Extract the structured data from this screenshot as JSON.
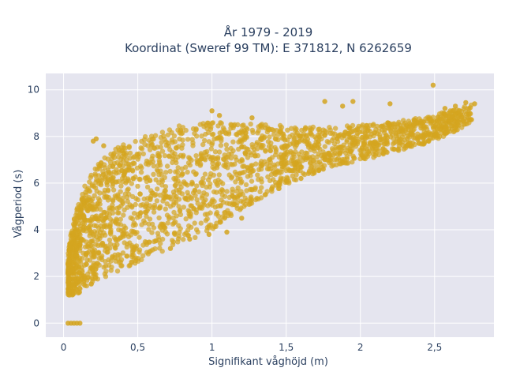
{
  "chart_data": {
    "type": "scatter",
    "title_lines": [
      "År 1979 - 2019",
      "Koordinat (Sweref 99 TM): E 371812, N 6262659"
    ],
    "xlabel": "Signifikant våghöjd (m)",
    "ylabel": "Vågperiod (s)",
    "xlim": [
      -0.12,
      2.9
    ],
    "ylim": [
      -0.6,
      10.7
    ],
    "x_ticks": [
      0,
      0.5,
      1,
      1.5,
      2,
      2.5
    ],
    "x_tick_labels": [
      "0",
      "0,5",
      "1",
      "1,5",
      "2",
      "2,5"
    ],
    "y_ticks": [
      0,
      2,
      4,
      6,
      8,
      10
    ],
    "y_tick_labels": [
      "0",
      "2",
      "4",
      "6",
      "8",
      "10"
    ],
    "grid": true,
    "background": "#e5e5ef",
    "grid_color": "#ffffff",
    "marker_color": "#d4a520",
    "marker_opacity": 0.7,
    "envelope": [
      {
        "x": 0.03,
        "y_low": 1.2,
        "y_high": 3.2
      },
      {
        "x": 0.08,
        "y_low": 1.2,
        "y_high": 4.8
      },
      {
        "x": 0.15,
        "y_low": 1.5,
        "y_high": 6.0
      },
      {
        "x": 0.25,
        "y_low": 1.9,
        "y_high": 7.0
      },
      {
        "x": 0.4,
        "y_low": 2.3,
        "y_high": 7.7
      },
      {
        "x": 0.6,
        "y_low": 2.9,
        "y_high": 8.2
      },
      {
        "x": 0.8,
        "y_low": 3.4,
        "y_high": 8.5
      },
      {
        "x": 1.0,
        "y_low": 4.0,
        "y_high": 8.6
      },
      {
        "x": 1.2,
        "y_low": 4.9,
        "y_high": 8.6
      },
      {
        "x": 1.4,
        "y_low": 5.6,
        "y_high": 8.5
      },
      {
        "x": 1.6,
        "y_low": 6.2,
        "y_high": 8.4
      },
      {
        "x": 1.8,
        "y_low": 6.7,
        "y_high": 8.4
      },
      {
        "x": 2.0,
        "y_low": 6.9,
        "y_high": 8.5
      },
      {
        "x": 2.2,
        "y_low": 7.3,
        "y_high": 8.6
      },
      {
        "x": 2.4,
        "y_low": 7.6,
        "y_high": 8.8
      },
      {
        "x": 2.6,
        "y_low": 8.1,
        "y_high": 9.1
      },
      {
        "x": 2.75,
        "y_low": 8.6,
        "y_high": 9.4
      }
    ],
    "points": [
      {
        "x": 0.03,
        "y": 0
      },
      {
        "x": 0.05,
        "y": 0
      },
      {
        "x": 0.07,
        "y": 0
      },
      {
        "x": 0.09,
        "y": 0
      },
      {
        "x": 0.11,
        "y": 0
      },
      {
        "x": 0.2,
        "y": 7.8
      },
      {
        "x": 0.22,
        "y": 7.9
      },
      {
        "x": 0.27,
        "y": 7.6
      },
      {
        "x": 1.0,
        "y": 9.1
      },
      {
        "x": 1.05,
        "y": 8.9
      },
      {
        "x": 1.27,
        "y": 8.8
      },
      {
        "x": 1.76,
        "y": 9.5
      },
      {
        "x": 1.88,
        "y": 9.3
      },
      {
        "x": 1.95,
        "y": 9.5
      },
      {
        "x": 2.2,
        "y": 9.4
      },
      {
        "x": 2.49,
        "y": 10.2
      },
      {
        "x": 2.71,
        "y": 9.45
      },
      {
        "x": 2.77,
        "y": 9.4
      },
      {
        "x": 2.64,
        "y": 9.3
      },
      {
        "x": 2.57,
        "y": 9.2
      },
      {
        "x": 0.72,
        "y": 3.2
      },
      {
        "x": 0.85,
        "y": 3.6
      },
      {
        "x": 0.98,
        "y": 3.8
      },
      {
        "x": 1.1,
        "y": 3.9
      },
      {
        "x": 1.2,
        "y": 4.5
      },
      {
        "x": 1.5,
        "y": 6.1
      },
      {
        "x": 1.6,
        "y": 6.2
      },
      {
        "x": 1.75,
        "y": 6.6
      }
    ]
  }
}
